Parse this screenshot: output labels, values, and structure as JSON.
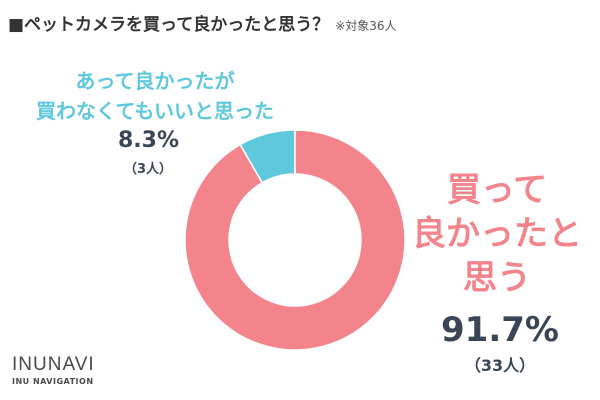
{
  "title": "■ペットカメラを買って良かったと思う？",
  "note": "※対象36人",
  "chart_data": {
    "type": "pie",
    "categories": [
      "買って良かったと思う",
      "あって良かったが買わなくてもいいと思った"
    ],
    "values": [
      91.7,
      8.3
    ],
    "counts": [
      "（33人）",
      "（3人）"
    ],
    "percent_labels": [
      "91.7%",
      "8.3%"
    ],
    "colors": [
      "#f4848b",
      "#5ec8dc"
    ]
  },
  "labels": {
    "big_line1": "買って",
    "big_line2": "良かったと",
    "big_line3": "思う",
    "small_line1": "あって良かったが",
    "small_line2": "買わなくてもいいと思った"
  },
  "logo": {
    "main": "INUNAVI",
    "sub": "INU NAVIGATION"
  }
}
